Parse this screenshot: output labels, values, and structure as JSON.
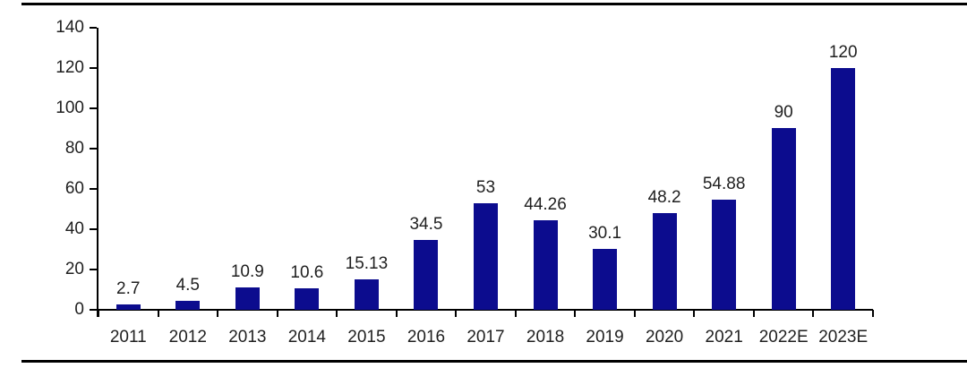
{
  "chart_data": {
    "type": "bar",
    "title": "",
    "xlabel": "",
    "ylabel": "",
    "categories": [
      "2011",
      "2012",
      "2013",
      "2014",
      "2015",
      "2016",
      "2017",
      "2018",
      "2019",
      "2020",
      "2021",
      "2022E",
      "2023E"
    ],
    "values": [
      2.7,
      4.5,
      10.9,
      10.6,
      15.13,
      34.5,
      53,
      44.26,
      30.1,
      48.2,
      54.88,
      90,
      120
    ],
    "value_labels": [
      "2.7",
      "4.5",
      "10.9",
      "10.6",
      "15.13",
      "34.5",
      "53",
      "44.26",
      "30.1",
      "48.2",
      "54.88",
      "90",
      "120"
    ],
    "ylim": [
      0,
      140
    ],
    "ytick_step": 20,
    "ytick_labels": [
      "0",
      "20",
      "40",
      "60",
      "80",
      "100",
      "120",
      "140"
    ],
    "grid": false,
    "legend": null,
    "colors": {
      "bar": "#0C0C8E",
      "axis": "#000000",
      "text": "#1f1f1f",
      "frame_line": "#000000",
      "background": "#ffffff"
    }
  }
}
